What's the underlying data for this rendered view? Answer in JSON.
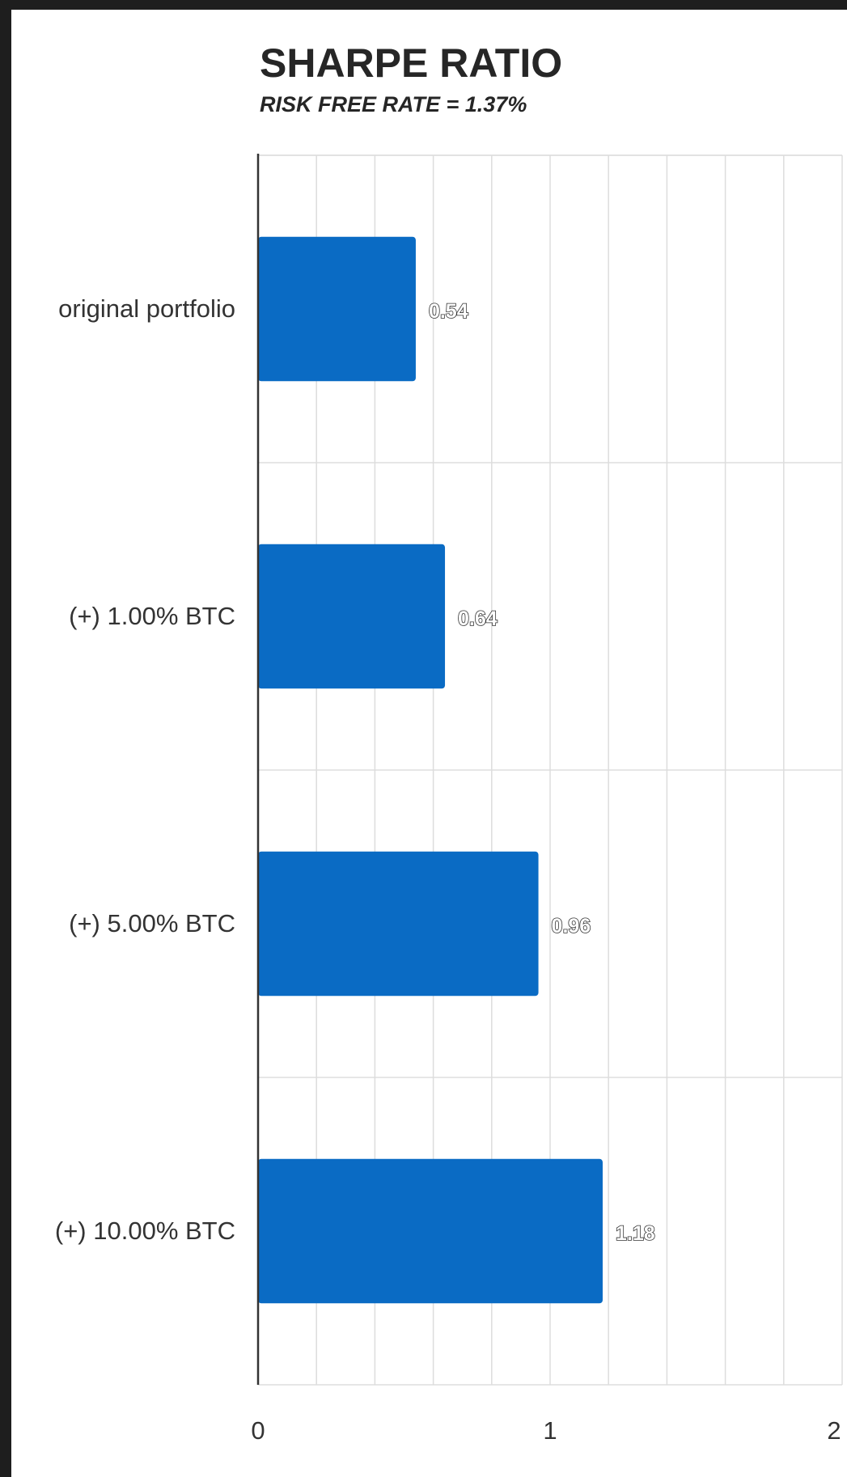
{
  "chart_data": {
    "type": "bar",
    "orientation": "horizontal",
    "title": "SHARPE RATIO",
    "subtitle": "RISK FREE RATE = 1.37%",
    "categories": [
      "original portfolio",
      "(+) 1.00% BTC",
      "(+) 5.00% BTC",
      "(+) 10.00% BTC"
    ],
    "values": [
      0.54,
      0.64,
      0.96,
      1.18
    ],
    "value_labels": [
      "0.54",
      "0.64",
      "0.96",
      "1.18"
    ],
    "xlim": [
      0,
      2
    ],
    "x_ticks": [
      "0",
      "1",
      "2"
    ],
    "grid": true,
    "bar_color": "#0a6bc4",
    "legend": "none"
  }
}
